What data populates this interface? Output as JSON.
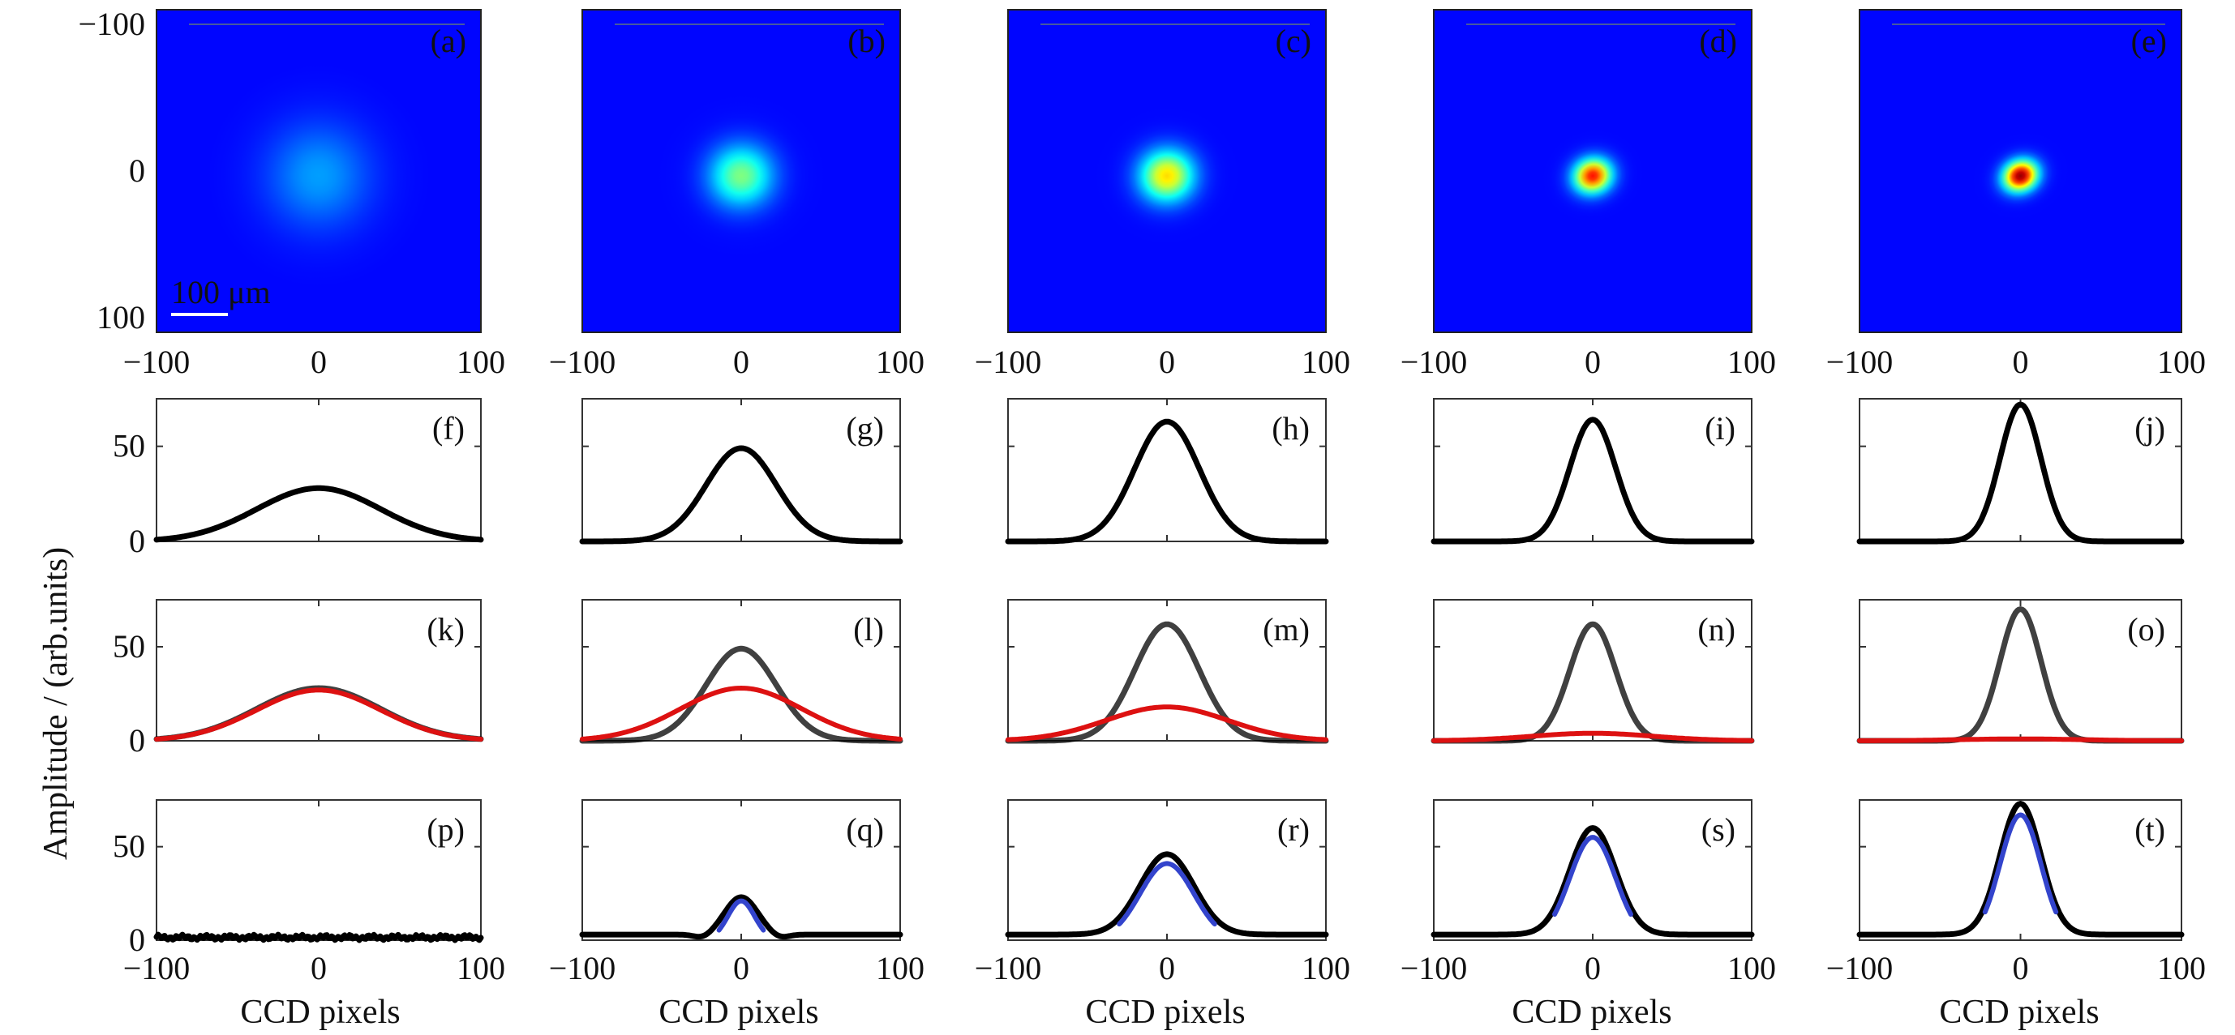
{
  "figure": {
    "ylabel": "Amplitude / (arb.units)",
    "xlabel": "CCD pixels"
  },
  "images": [
    {
      "label": "(a)",
      "peak": 0.28,
      "sigma": 55,
      "core": 0.0,
      "ellipse": 0.0
    },
    {
      "label": "(b)",
      "peak": 0.5,
      "sigma": 42,
      "core": 0.25,
      "ellipse": 0.05
    },
    {
      "label": "(c)",
      "peak": 0.66,
      "sigma": 38,
      "core": 0.38,
      "ellipse": 0.08
    },
    {
      "label": "(d)",
      "peak": 0.86,
      "sigma": 28,
      "core": 0.55,
      "ellipse": 0.18
    },
    {
      "label": "(e)",
      "peak": 0.98,
      "sigma": 26,
      "core": 0.65,
      "ellipse": 0.25
    }
  ],
  "scale_bar": {
    "label": "100 μm"
  },
  "image_axes": {
    "xticks": [
      "−100",
      "0",
      "100"
    ],
    "yticks": [
      "−100",
      "0",
      "100"
    ]
  },
  "chart_data": [
    {
      "type": "line",
      "row": "total profile",
      "xlim": [
        -100,
        100
      ],
      "ylim": [
        0,
        75
      ],
      "xticks": [
        -100,
        0,
        100
      ],
      "yticks": [
        0,
        50
      ],
      "panels": [
        {
          "label": "(f)",
          "series": [
            {
              "color": "#000000",
              "peak": 28,
              "fwhm": 90
            }
          ]
        },
        {
          "label": "(g)",
          "series": [
            {
              "color": "#000000",
              "peak": 49,
              "fwhm": 52
            }
          ]
        },
        {
          "label": "(h)",
          "series": [
            {
              "color": "#000000",
              "peak": 63,
              "fwhm": 48
            }
          ]
        },
        {
          "label": "(i)",
          "series": [
            {
              "color": "#000000",
              "peak": 64,
              "fwhm": 34
            }
          ]
        },
        {
          "label": "(j)",
          "series": [
            {
              "color": "#000000",
              "peak": 72,
              "fwhm": 30
            }
          ]
        }
      ]
    },
    {
      "type": "line",
      "row": "decomposition",
      "xlim": [
        -100,
        100
      ],
      "ylim": [
        0,
        75
      ],
      "xticks": [
        -100,
        0,
        100
      ],
      "yticks": [
        0,
        50
      ],
      "panels": [
        {
          "label": "(k)",
          "series": [
            {
              "color": "#000000",
              "peak": 28,
              "fwhm": 90
            },
            {
              "color": "#dd1111",
              "peak": 27,
              "fwhm": 90
            }
          ]
        },
        {
          "label": "(l)",
          "series": [
            {
              "color": "#000000",
              "peak": 49,
              "fwhm": 52
            },
            {
              "color": "#dd1111",
              "peak": 28,
              "fwhm": 90
            }
          ]
        },
        {
          "label": "(m)",
          "series": [
            {
              "color": "#000000",
              "peak": 62,
              "fwhm": 48
            },
            {
              "color": "#dd1111",
              "peak": 18,
              "fwhm": 90
            }
          ]
        },
        {
          "label": "(n)",
          "series": [
            {
              "color": "#000000",
              "peak": 62,
              "fwhm": 34
            },
            {
              "color": "#dd1111",
              "peak": 4,
              "fwhm": 90
            }
          ]
        },
        {
          "label": "(o)",
          "series": [
            {
              "color": "#000000",
              "peak": 70,
              "fwhm": 30
            },
            {
              "color": "#dd1111",
              "peak": 1,
              "fwhm": 90
            }
          ]
        }
      ]
    },
    {
      "type": "line",
      "row": "difference",
      "xlim": [
        -100,
        100
      ],
      "ylim": [
        0,
        75
      ],
      "xticks": [
        -100,
        0,
        100
      ],
      "yticks": [
        0,
        50
      ],
      "panels": [
        {
          "label": "(p)",
          "series": [
            {
              "color": "#000000",
              "peak": 0,
              "fwhm": 30,
              "noise": 1.5
            }
          ]
        },
        {
          "label": "(q)",
          "series": [
            {
              "color": "#000000",
              "peak": 20,
              "fwhm": 24,
              "baseline": 3,
              "dip": 2
            },
            {
              "color": "#3344cc",
              "peak": 21,
              "fwhm": 20,
              "trunc": 14
            }
          ]
        },
        {
          "label": "(r)",
          "series": [
            {
              "color": "#000000",
              "peak": 43,
              "fwhm": 40,
              "baseline": 3
            },
            {
              "color": "#3344cc",
              "peak": 41,
              "fwhm": 40,
              "trunc": 30
            }
          ]
        },
        {
          "label": "(s)",
          "series": [
            {
              "color": "#000000",
              "peak": 57,
              "fwhm": 34,
              "baseline": 3
            },
            {
              "color": "#3344cc",
              "peak": 55,
              "fwhm": 34,
              "trunc": 24
            }
          ]
        },
        {
          "label": "(t)",
          "series": [
            {
              "color": "#000000",
              "peak": 70,
              "fwhm": 30,
              "baseline": 3
            },
            {
              "color": "#3344cc",
              "peak": 67,
              "fwhm": 30,
              "trunc": 22
            }
          ]
        }
      ]
    }
  ]
}
